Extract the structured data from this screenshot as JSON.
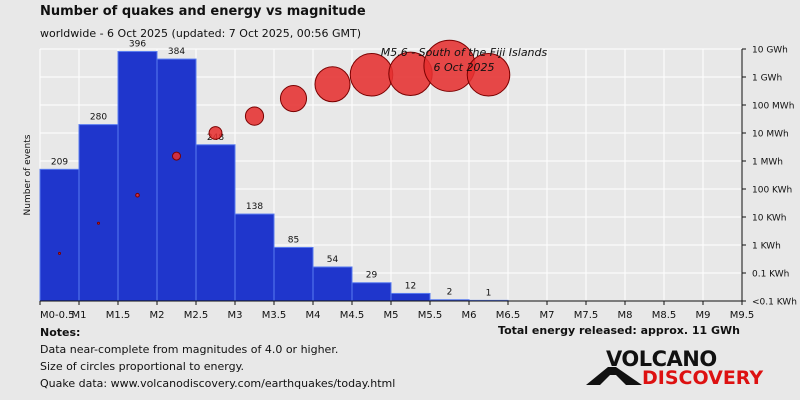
{
  "header": {
    "title": "Number of quakes and energy vs magnitude",
    "subtitle": "worldwide -  6 Oct 2025 (updated: 7 Oct 2025, 00:56 GMT)"
  },
  "footer": {
    "notes_header": "Notes:",
    "notes": [
      "Data near-complete from magnitudes of 4.0 or higher.",
      "Size of circles proportional to energy.",
      "Quake data: www.volcanodiscovery.com/earthquakes/today.html"
    ],
    "total_energy": "Total energy released: approx. 11 GWh"
  },
  "logo": {
    "line1": "VOLCANO",
    "line2": "DISCOVERY"
  },
  "chart_data": {
    "type": "bar",
    "ylabel": "Number of events",
    "x_tick_labels": [
      "M0-0.5",
      "M1",
      "M1.5",
      "M2",
      "M2.5",
      "M3",
      "M3.5",
      "M4",
      "M4.5",
      "M5",
      "M5.5",
      "M6",
      "M6.5",
      "M7",
      "M7.5",
      "M8",
      "M8.5",
      "M9",
      "M9.5"
    ],
    "bins": [
      {
        "range": [
          0.5,
          1.0
        ],
        "count": 209
      },
      {
        "range": [
          1.0,
          1.5
        ],
        "count": 280
      },
      {
        "range": [
          1.5,
          2.0
        ],
        "count": 396
      },
      {
        "range": [
          2.0,
          2.5
        ],
        "count": 384
      },
      {
        "range": [
          2.5,
          3.0
        ],
        "count": 248
      },
      {
        "range": [
          3.0,
          3.5
        ],
        "count": 138
      },
      {
        "range": [
          3.5,
          4.0
        ],
        "count": 85
      },
      {
        "range": [
          4.0,
          4.5
        ],
        "count": 54
      },
      {
        "range": [
          4.5,
          5.0
        ],
        "count": 29
      },
      {
        "range": [
          5.0,
          5.5
        ],
        "count": 12
      },
      {
        "range": [
          5.5,
          6.0
        ],
        "count": 2
      },
      {
        "range": [
          6.0,
          6.5
        ],
        "count": 1
      }
    ],
    "bar_ylim": [
      0,
      400
    ],
    "energy_axis": {
      "scale": "log",
      "tick_labels": [
        "<0.1 KWh",
        "0.1 KWh",
        "1 KWh",
        "10 KWh",
        "100 KWh",
        "1 MWh",
        "10 MWh",
        "100 MWh",
        "1 GWh",
        "10 GWh"
      ],
      "tick_values_kwh": [
        0.01,
        0.1,
        1,
        10,
        100,
        1000,
        10000,
        100000,
        1000000,
        10000000
      ]
    },
    "energy_points": [
      {
        "magnitude": 0.75,
        "energy_kwh": 0.5
      },
      {
        "magnitude": 1.25,
        "energy_kwh": 6
      },
      {
        "magnitude": 1.75,
        "energy_kwh": 60
      },
      {
        "magnitude": 2.25,
        "energy_kwh": 1500
      },
      {
        "magnitude": 2.75,
        "energy_kwh": 10000
      },
      {
        "magnitude": 3.25,
        "energy_kwh": 40000
      },
      {
        "magnitude": 3.75,
        "energy_kwh": 170000
      },
      {
        "magnitude": 4.25,
        "energy_kwh": 550000
      },
      {
        "magnitude": 4.75,
        "energy_kwh": 1200000
      },
      {
        "magnitude": 5.25,
        "energy_kwh": 1300000
      },
      {
        "magnitude": 5.75,
        "energy_kwh": 2500000
      },
      {
        "magnitude": 6.25,
        "energy_kwh": 1200000
      }
    ],
    "annotation": {
      "line1": "M5.6 - South of the Fiji Islands",
      "line2": "6 Oct 2025"
    },
    "colors": {
      "bar_fill": "#1f36cc",
      "bar_stroke": "#5a7cf0",
      "circle_fill": "#e53030",
      "circle_stroke": "#7a0000",
      "plot_bg": "#e8e8e8",
      "grid": "#ffffff"
    }
  }
}
